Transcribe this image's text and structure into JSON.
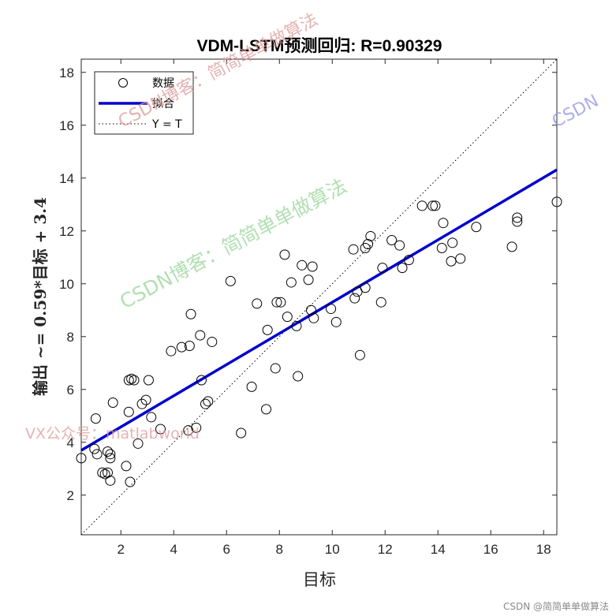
{
  "chart_data": {
    "type": "scatter",
    "title": "VDM-LSTM预测回归: R=0.90329",
    "xlabel": "目标",
    "ylabel": "输出 ~= 0.59*目标 + 3.4",
    "xlim": [
      0.5,
      18.5
    ],
    "ylim": [
      0.5,
      18.5
    ],
    "xticks": [
      2,
      4,
      6,
      8,
      10,
      12,
      14,
      16,
      18
    ],
    "yticks": [
      2,
      4,
      6,
      8,
      10,
      12,
      14,
      16,
      18
    ],
    "grid": false,
    "legend_position": "top-left",
    "legend": [
      {
        "label": "数据",
        "style": "marker-circle"
      },
      {
        "label": "拟合",
        "style": "line-solid"
      },
      {
        "label": "Y = T",
        "style": "line-dotted"
      }
    ],
    "fit": {
      "slope": 0.59,
      "intercept": 3.4,
      "color": "#0000cd"
    },
    "identity": {
      "color": "#000000"
    },
    "points": {
      "x": [
        0.5,
        1.0,
        1.05,
        1.1,
        1.3,
        1.4,
        1.5,
        1.5,
        1.6,
        1.6,
        1.6,
        1.7,
        2.2,
        2.3,
        2.3,
        2.35,
        2.4,
        2.5,
        2.65,
        2.8,
        2.95,
        3.05,
        3.15,
        3.5,
        3.9,
        4.3,
        4.55,
        4.6,
        4.65,
        4.85,
        5.0,
        5.05,
        5.2,
        5.3,
        5.45,
        6.15,
        6.55,
        6.95,
        7.15,
        7.5,
        7.55,
        7.85,
        7.9,
        8.05,
        8.2,
        8.3,
        8.45,
        8.65,
        8.7,
        8.85,
        9.1,
        9.2,
        9.25,
        9.3,
        9.95,
        10.15,
        10.8,
        10.85,
        10.95,
        11.05,
        11.25,
        11.25,
        11.35,
        11.45,
        11.85,
        11.9,
        12.25,
        12.55,
        12.65,
        12.9,
        13.4,
        13.8,
        13.9,
        14.15,
        14.2,
        14.5,
        14.55,
        14.85,
        15.45,
        16.8,
        17.0,
        17.0,
        18.5
      ],
      "y": [
        3.4,
        3.75,
        4.9,
        3.55,
        2.85,
        2.8,
        3.65,
        2.85,
        3.55,
        3.4,
        2.55,
        5.5,
        3.1,
        5.15,
        6.35,
        2.5,
        6.4,
        6.35,
        3.95,
        5.45,
        5.6,
        6.35,
        4.95,
        4.5,
        7.45,
        7.6,
        4.45,
        7.65,
        8.85,
        4.55,
        8.05,
        6.35,
        5.45,
        5.55,
        7.8,
        10.1,
        4.35,
        6.1,
        9.25,
        5.25,
        8.25,
        6.8,
        9.3,
        9.3,
        11.1,
        8.75,
        10.05,
        8.4,
        6.5,
        10.7,
        10.15,
        9.0,
        10.65,
        8.7,
        9.05,
        8.55,
        11.3,
        9.45,
        9.7,
        7.3,
        9.85,
        11.35,
        11.5,
        11.8,
        9.3,
        10.6,
        11.65,
        11.45,
        10.6,
        10.9,
        12.95,
        12.95,
        12.95,
        11.35,
        12.3,
        10.85,
        11.55,
        10.95,
        12.15,
        11.4,
        12.5,
        12.35,
        13.1
      ]
    }
  },
  "watermarks": [
    {
      "text": "CSDN博客：简简单单做算法",
      "color": "#dd9999"
    },
    {
      "text": "CSDN博客：简简单单做算法",
      "color": "#9fd89f"
    },
    {
      "text": "CSDN",
      "color": "#9a9ae6"
    },
    {
      "text": "VX公众号：matlabworld",
      "color": "#dd9999"
    }
  ],
  "footer": "CSDN @简简单单做算法"
}
